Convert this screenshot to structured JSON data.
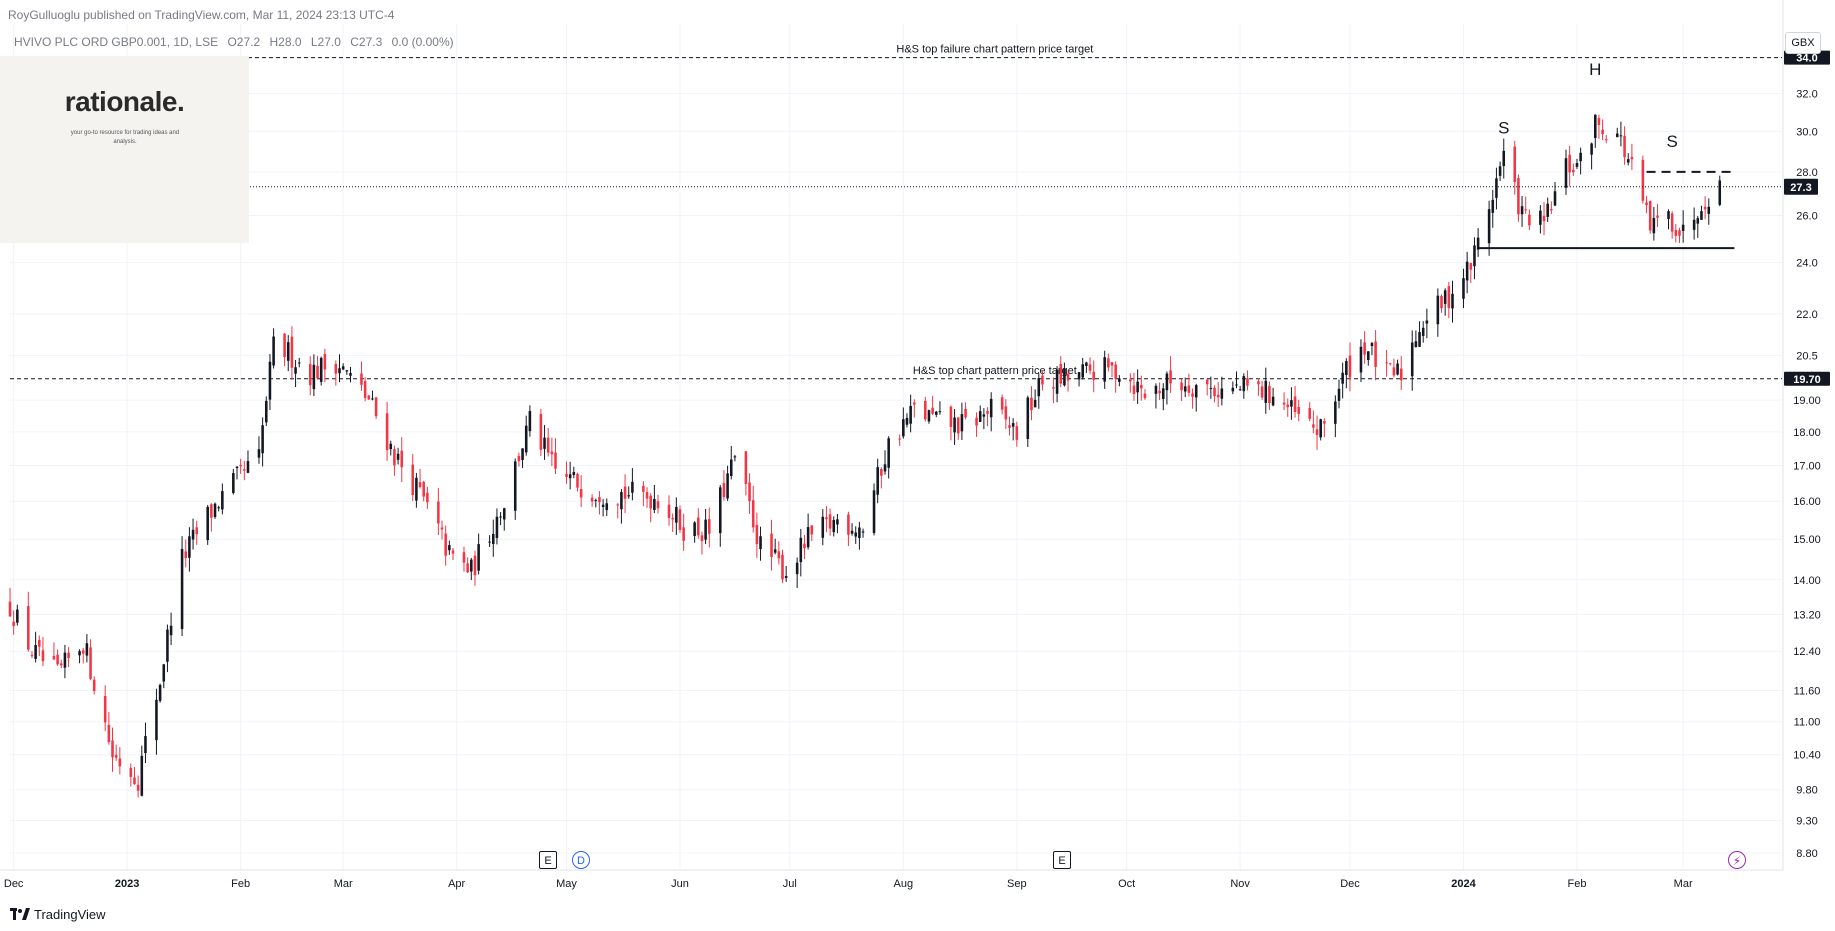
{
  "header": {
    "published": "RoyGulluoglu published on TradingView.com, Mar 11, 2024 23:13 UTC-4",
    "symbol": "HVIVO PLC ORD GBP0.001, 1D, LSE",
    "open": "O27.2",
    "high": "H28.0",
    "low": "L27.0",
    "close": "C27.3",
    "change": "0.0 (0.00%)"
  },
  "logo": {
    "wordmark": "rationale.",
    "tagline": "your go-to resource for trading ideas and analysis."
  },
  "toolbar": {
    "currency": "GBX"
  },
  "footer": {
    "brand": "TradingView"
  },
  "events": [
    {
      "glyph": "E",
      "kind": "earnings"
    },
    {
      "glyph": "D",
      "kind": "dividend"
    },
    {
      "glyph": "E",
      "kind": "earnings"
    },
    {
      "glyph": "⚡",
      "kind": "split"
    }
  ],
  "colors": {
    "up": "#131722",
    "down": "#f23645",
    "grid": "#f0f3fa",
    "axis": "#131722",
    "price_tag": "#131722"
  },
  "chart_data": {
    "type": "candlestick",
    "title": "",
    "y_scale": "log",
    "ylim": [
      8.55,
      36.0
    ],
    "y_ticks": [
      "8.80",
      "9.30",
      "9.80",
      "10.40",
      "11.00",
      "11.60",
      "12.40",
      "13.20",
      "14.00",
      "15.00",
      "16.00",
      "17.00",
      "18.00",
      "19.00",
      "20.5",
      "22.0",
      "24.0",
      "26.0",
      "28.0",
      "30.0",
      "32.0",
      "34.0"
    ],
    "x_ticks": [
      {
        "label": "Dec",
        "date": "2022-12-01"
      },
      {
        "label": "2023",
        "date": "2023-01-01",
        "bold": true
      },
      {
        "label": "Feb",
        "date": "2023-02-01"
      },
      {
        "label": "Mar",
        "date": "2023-03-01"
      },
      {
        "label": "Apr",
        "date": "2023-04-01"
      },
      {
        "label": "May",
        "date": "2023-05-01"
      },
      {
        "label": "Jun",
        "date": "2023-06-01"
      },
      {
        "label": "Jul",
        "date": "2023-07-01"
      },
      {
        "label": "Aug",
        "date": "2023-08-01"
      },
      {
        "label": "Sep",
        "date": "2023-09-01"
      },
      {
        "label": "Oct",
        "date": "2023-10-01"
      },
      {
        "label": "Nov",
        "date": "2023-11-01"
      },
      {
        "label": "Dec",
        "date": "2023-12-01"
      },
      {
        "label": "2024",
        "date": "2024-01-01",
        "bold": true
      },
      {
        "label": "Feb",
        "date": "2024-02-01"
      },
      {
        "label": "Mar",
        "date": "2024-03-01"
      }
    ],
    "x_range": [
      "2022-11-30",
      "2024-03-28"
    ],
    "last_price": "27.3",
    "last_price_value": 27.3,
    "levels": [
      {
        "price": 34.0,
        "label": "34.0",
        "annotation": "H&S top failure chart pattern price target",
        "annotation_date": "2023-08-26"
      },
      {
        "price": 19.7,
        "label": "19.70",
        "annotation": "H&S top chart pattern price target",
        "annotation_date": "2023-08-26"
      }
    ],
    "neckline": {
      "price": 24.6,
      "from": "2024-01-05",
      "to": "2024-03-15"
    },
    "resistance": {
      "price": 28.0,
      "from": "2024-02-20",
      "to": "2024-03-14"
    },
    "pattern_labels": [
      {
        "text": "S",
        "date": "2024-01-12",
        "price": 29.9
      },
      {
        "text": "H",
        "date": "2024-02-06",
        "price": 33.0
      },
      {
        "text": "S",
        "date": "2024-02-27",
        "price": 29.2
      }
    ],
    "event_dates": [
      "2023-04-25",
      "2023-04-28",
      "2023-09-13",
      "2024-03-21"
    ],
    "anchors": [
      [
        "2022-11-30",
        13.4
      ],
      [
        "2022-12-06",
        12.4
      ],
      [
        "2022-12-13",
        11.9
      ],
      [
        "2022-12-20",
        12.6
      ],
      [
        "2022-12-28",
        10.4
      ],
      [
        "2023-01-04",
        10.0
      ],
      [
        "2023-01-10",
        11.8
      ],
      [
        "2023-01-16",
        14.5
      ],
      [
        "2023-01-23",
        15.6
      ],
      [
        "2023-01-30",
        16.5
      ],
      [
        "2023-02-06",
        17.2
      ],
      [
        "2023-02-10",
        20.8
      ],
      [
        "2023-02-14",
        20.6
      ],
      [
        "2023-02-20",
        19.9
      ],
      [
        "2023-02-27",
        20.3
      ],
      [
        "2023-03-08",
        19.0
      ],
      [
        "2023-03-15",
        17.3
      ],
      [
        "2023-03-22",
        16.2
      ],
      [
        "2023-03-30",
        14.6
      ],
      [
        "2023-04-05",
        14.2
      ],
      [
        "2023-04-14",
        16.0
      ],
      [
        "2023-04-21",
        18.3
      ],
      [
        "2023-04-28",
        16.8
      ],
      [
        "2023-05-08",
        16.3
      ],
      [
        "2023-05-18",
        16.2
      ],
      [
        "2023-05-26",
        16.1
      ],
      [
        "2023-06-02",
        15.3
      ],
      [
        "2023-06-09",
        15.2
      ],
      [
        "2023-06-16",
        17.2
      ],
      [
        "2023-06-23",
        14.8
      ],
      [
        "2023-06-30",
        14.2
      ],
      [
        "2023-07-06",
        15.0
      ],
      [
        "2023-07-14",
        15.5
      ],
      [
        "2023-07-21",
        15.3
      ],
      [
        "2023-07-28",
        17.6
      ],
      [
        "2023-08-04",
        18.7
      ],
      [
        "2023-08-11",
        18.3
      ],
      [
        "2023-08-18",
        18.2
      ],
      [
        "2023-08-25",
        18.7
      ],
      [
        "2023-09-01",
        18.0
      ],
      [
        "2023-09-08",
        19.6
      ],
      [
        "2023-09-15",
        19.7
      ],
      [
        "2023-09-22",
        20.0
      ],
      [
        "2023-09-29",
        20.0
      ],
      [
        "2023-10-06",
        19.2
      ],
      [
        "2023-10-13",
        19.6
      ],
      [
        "2023-10-20",
        19.5
      ],
      [
        "2023-10-27",
        19.3
      ],
      [
        "2023-11-03",
        19.4
      ],
      [
        "2023-11-10",
        19.2
      ],
      [
        "2023-11-17",
        18.4
      ],
      [
        "2023-11-23",
        18.0
      ],
      [
        "2023-11-30",
        20.0
      ],
      [
        "2023-12-05",
        20.9
      ],
      [
        "2023-12-11",
        19.8
      ],
      [
        "2023-12-15",
        19.9
      ],
      [
        "2023-12-20",
        21.6
      ],
      [
        "2023-12-27",
        22.5
      ],
      [
        "2024-01-03",
        23.9
      ],
      [
        "2024-01-08",
        26.4
      ],
      [
        "2024-01-12",
        28.8
      ],
      [
        "2024-01-17",
        26.0
      ],
      [
        "2024-01-23",
        25.6
      ],
      [
        "2024-01-29",
        28.2
      ],
      [
        "2024-02-02",
        28.4
      ],
      [
        "2024-02-06",
        30.4
      ],
      [
        "2024-02-12",
        29.9
      ],
      [
        "2024-02-16",
        28.1
      ],
      [
        "2024-02-21",
        25.4
      ],
      [
        "2024-02-26",
        26.0
      ],
      [
        "2024-03-01",
        25.2
      ],
      [
        "2024-03-06",
        26.7
      ],
      [
        "2024-03-11",
        27.3
      ]
    ]
  }
}
